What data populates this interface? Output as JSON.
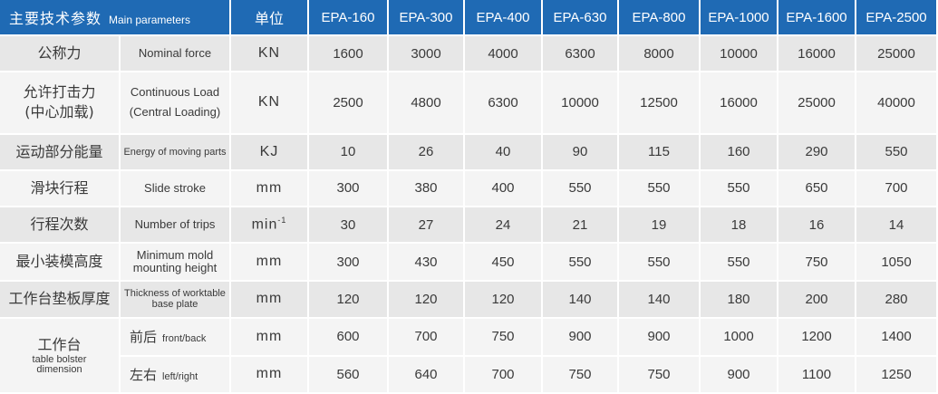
{
  "header": {
    "param_zh": "主要技术参数",
    "param_en": "Main parameters",
    "unit": "单位",
    "models": [
      "EPA-160",
      "EPA-300",
      "EPA-400",
      "EPA-630",
      "EPA-800",
      "EPA-1000",
      "EPA-1600",
      "EPA-2500"
    ]
  },
  "rows": [
    {
      "zh": "公称力",
      "en": "Nominal force",
      "unit": "KN",
      "values": [
        "1600",
        "3000",
        "4000",
        "6300",
        "8000",
        "10000",
        "16000",
        "25000"
      ]
    },
    {
      "zh": "允许打击力",
      "zh2": "(中心加载)",
      "en": "Continuous  Load",
      "en2": "(Central Loading)",
      "unit": "KN",
      "values": [
        "2500",
        "4800",
        "6300",
        "10000",
        "12500",
        "16000",
        "25000",
        "40000"
      ]
    },
    {
      "zh": "运动部分能量",
      "en": "Energy of moving parts",
      "unit": "KJ",
      "values": [
        "10",
        "26",
        "40",
        "90",
        "115",
        "160",
        "290",
        "550"
      ]
    },
    {
      "zh": "滑块行程",
      "en": "Slide stroke",
      "unit": "mm",
      "values": [
        "300",
        "380",
        "400",
        "550",
        "550",
        "550",
        "650",
        "700"
      ]
    },
    {
      "zh": "行程次数",
      "en": "Number of trips",
      "unit": "min",
      "unit_sup": "-1",
      "values": [
        "30",
        "27",
        "24",
        "21",
        "19",
        "18",
        "16",
        "14"
      ]
    },
    {
      "zh": "最小装模高度",
      "en": "Minimum mold",
      "en2": "mounting height",
      "unit": "mm",
      "values": [
        "300",
        "430",
        "450",
        "550",
        "550",
        "550",
        "750",
        "1050"
      ]
    },
    {
      "zh": "工作台垫板厚度",
      "en": "Thickness of worktable",
      "en2": "base plate",
      "unit": "mm",
      "values": [
        "120",
        "120",
        "120",
        "140",
        "140",
        "180",
        "200",
        "280"
      ]
    }
  ],
  "bolster": {
    "zh": "工作台",
    "en": "table bolster",
    "en2": "dimension",
    "sub_rows": [
      {
        "zh": "前后",
        "en": "front/back",
        "unit": "mm",
        "values": [
          "600",
          "700",
          "750",
          "900",
          "900",
          "1000",
          "1200",
          "1400"
        ]
      },
      {
        "zh": "左右",
        "en": "left/right",
        "unit": "mm",
        "values": [
          "560",
          "640",
          "700",
          "750",
          "750",
          "900",
          "1100",
          "1250"
        ]
      }
    ]
  }
}
